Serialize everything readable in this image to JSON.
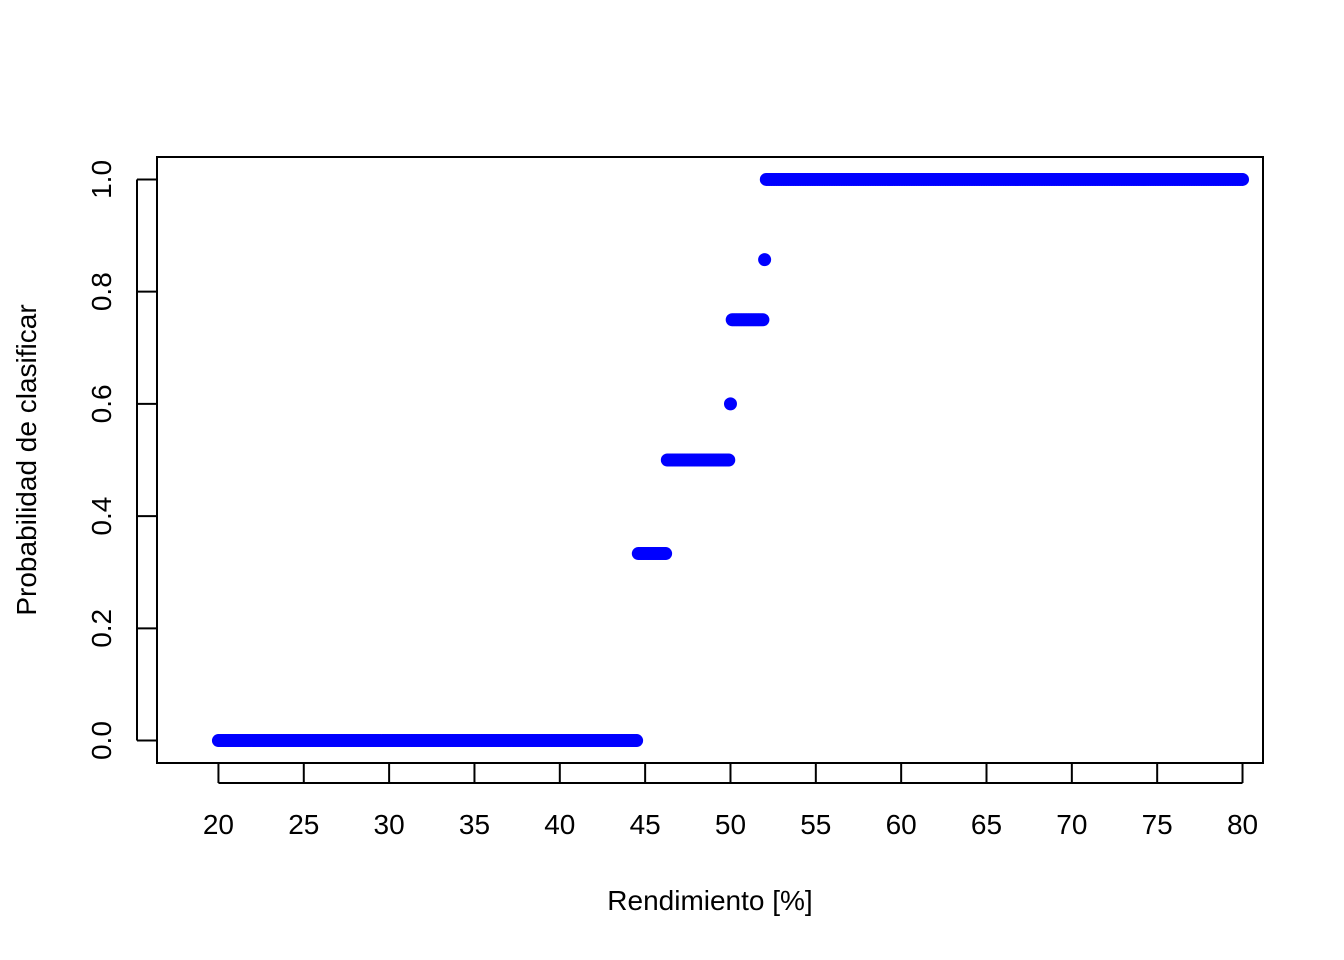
{
  "chart_data": {
    "type": "scatter",
    "title": "",
    "xlabel": "Rendimiento [%]",
    "ylabel": "Probabilidad de clasificar",
    "xlim": [
      16.4,
      81.2
    ],
    "ylim": [
      -0.04,
      1.04
    ],
    "x_ticks": [
      "20",
      "25",
      "30",
      "35",
      "40",
      "45",
      "50",
      "55",
      "60",
      "65",
      "70",
      "75",
      "80"
    ],
    "y_ticks": [
      "0.0",
      "0.2",
      "0.4",
      "0.6",
      "0.8",
      "1.0"
    ],
    "point_color": "#0000ff",
    "grid": false,
    "segments": [
      {
        "x_start": 20.0,
        "x_end": 44.5,
        "y": 0.0
      },
      {
        "x_start": 44.6,
        "x_end": 46.2,
        "y": 0.3333
      },
      {
        "x_start": 46.3,
        "x_end": 49.9,
        "y": 0.5
      },
      {
        "x_start": 50.0,
        "x_end": 50.0,
        "y": 0.6
      },
      {
        "x_start": 50.1,
        "x_end": 51.9,
        "y": 0.75
      },
      {
        "x_start": 52.0,
        "x_end": 52.0,
        "y": 0.8571
      },
      {
        "x_start": 52.1,
        "x_end": 80.0,
        "y": 1.0
      }
    ]
  }
}
